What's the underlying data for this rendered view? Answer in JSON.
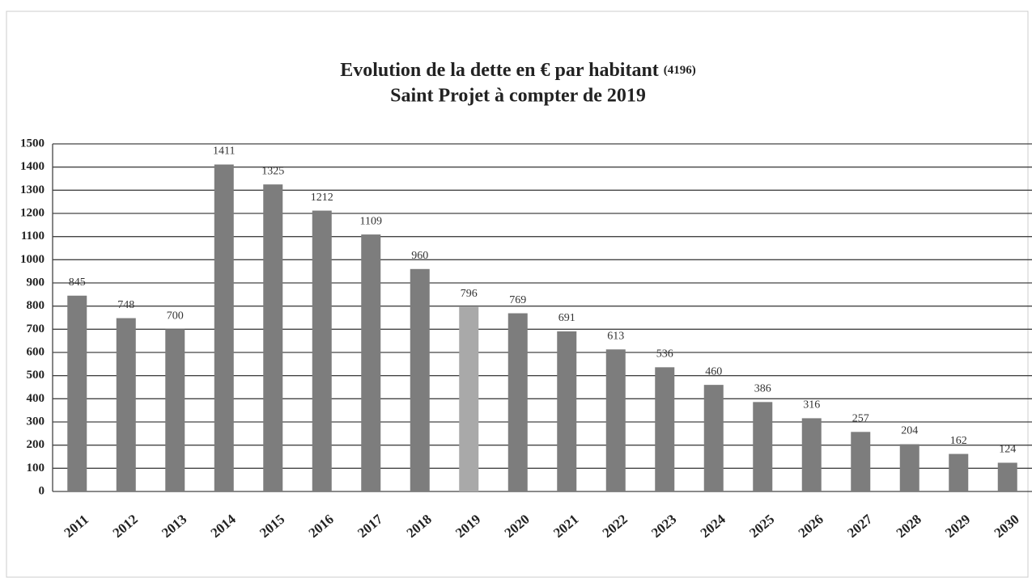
{
  "chart_data": {
    "type": "bar",
    "title": "Evolution de la dette en € par habitant",
    "title_note": "(4196)",
    "subtitle": "Saint Projet à compter de 2019",
    "categories": [
      "2011",
      "2012",
      "2013",
      "2014",
      "2015",
      "2016",
      "2017",
      "2018",
      "2019",
      "2020",
      "2021",
      "2022",
      "2023",
      "2024",
      "2025",
      "2026",
      "2027",
      "2028",
      "2029",
      "2030"
    ],
    "values": [
      845,
      748,
      700,
      1411,
      1325,
      1212,
      1109,
      960,
      796,
      769,
      691,
      613,
      536,
      460,
      386,
      316,
      257,
      204,
      162,
      124
    ],
    "colors": [
      "#7d7d7d",
      "#7d7d7d",
      "#7d7d7d",
      "#7d7d7d",
      "#7d7d7d",
      "#7d7d7d",
      "#7d7d7d",
      "#7d7d7d",
      "#a9a9a9",
      "#7d7d7d",
      "#7d7d7d",
      "#7d7d7d",
      "#7d7d7d",
      "#7d7d7d",
      "#7d7d7d",
      "#7d7d7d",
      "#7d7d7d",
      "#7d7d7d",
      "#7d7d7d",
      "#7d7d7d"
    ],
    "ylim": [
      0,
      1500
    ],
    "yticks": [
      0,
      100,
      200,
      300,
      400,
      500,
      600,
      700,
      800,
      900,
      1000,
      1100,
      1200,
      1300,
      1400,
      1500
    ],
    "grid": true
  }
}
